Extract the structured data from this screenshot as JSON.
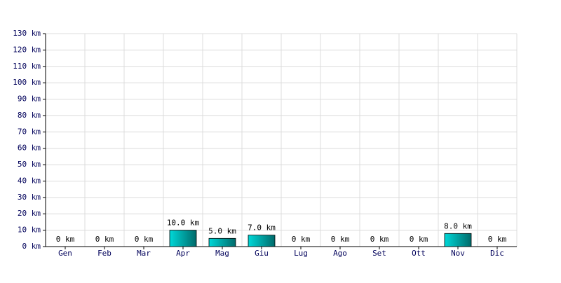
{
  "chart_data": {
    "type": "bar",
    "categories": [
      "Gen",
      "Feb",
      "Mar",
      "Apr",
      "Mag",
      "Giu",
      "Lug",
      "Ago",
      "Set",
      "Ott",
      "Nov",
      "Dic"
    ],
    "values": [
      0,
      0,
      0,
      10,
      5,
      7,
      0,
      0,
      0,
      0,
      8,
      0
    ],
    "value_labels": [
      "0 km",
      "0 km",
      "0 km",
      "10.0 km",
      "5.0 km",
      "7.0 km",
      "0 km",
      "0 km",
      "0 km",
      "0 km",
      "8.0 km",
      "0 km"
    ],
    "color": "#00d8d8",
    "ylim": [
      0,
      130
    ],
    "yticks": [
      {
        "value": 0,
        "label": "0 km"
      },
      {
        "value": 10,
        "label": "10 km"
      },
      {
        "value": 20,
        "label": "20 km"
      },
      {
        "value": 30,
        "label": "30 km"
      },
      {
        "value": 40,
        "label": "40 km"
      },
      {
        "value": 50,
        "label": "50 km"
      },
      {
        "value": 60,
        "label": "60 km"
      },
      {
        "value": 70,
        "label": "70 km"
      },
      {
        "value": 80,
        "label": "80 km"
      },
      {
        "value": 90,
        "label": "90 km"
      },
      {
        "value": 100,
        "label": "100 km"
      },
      {
        "value": 110,
        "label": "110 km"
      },
      {
        "value": 120,
        "label": "120 km"
      },
      {
        "value": 130,
        "label": "130 km"
      }
    ],
    "grid": true
  }
}
